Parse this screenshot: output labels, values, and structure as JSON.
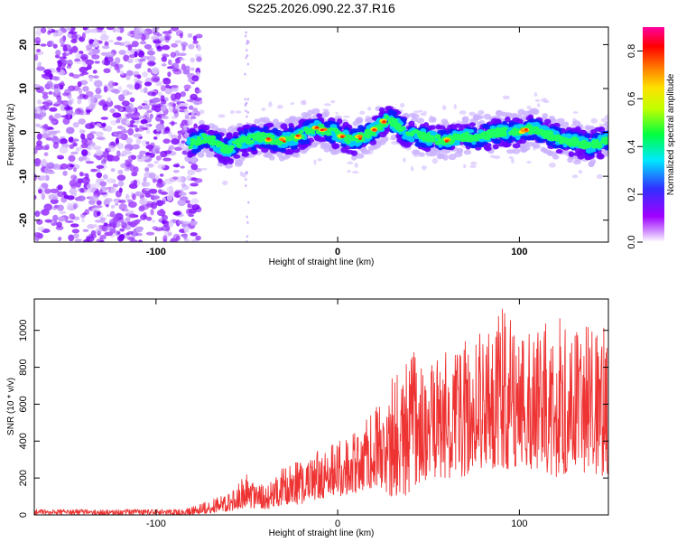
{
  "figure_title": "S225.2026.090.22.37.R16",
  "chart_data": [
    {
      "type": "heatmap",
      "xlabel": "Height of straight line (km)",
      "ylabel": "Frequency (Hz)",
      "xlim": [
        -167,
        149
      ],
      "ylim": [
        -25,
        24
      ],
      "xticks": [
        -100,
        0,
        100
      ],
      "xtick_labels": [
        "-100",
        "0",
        "100"
      ],
      "yticks": [
        20,
        10,
        0,
        -10,
        -20
      ],
      "ytick_labels": [
        "20",
        "10",
        "0",
        "-10",
        "-20"
      ],
      "signal_track": {
        "x": [
          -82,
          -72,
          -62,
          -52,
          -42,
          -32,
          -22,
          -12,
          -2,
          8,
          18,
          28,
          38,
          48,
          58,
          68,
          78,
          88,
          98,
          108,
          118,
          128,
          138,
          148
        ],
        "y": [
          -3,
          -1,
          -4,
          -2,
          -1,
          -2,
          -1,
          1,
          0,
          -2,
          0,
          3,
          0,
          -1,
          -2,
          -1,
          -1,
          0,
          0,
          1,
          -1,
          -2,
          -3,
          -2
        ]
      },
      "colorbar": {
        "label": "Normalized spectral amplitude",
        "min": 0.0,
        "max": 0.9,
        "ticks": [
          0.0,
          0.2,
          0.4,
          0.6,
          0.8
        ],
        "tick_labels": [
          "0.0",
          "0.2",
          "0.4",
          "0.6",
          "0.8"
        ],
        "colors": [
          "#ffffff",
          "#a000ff",
          "#3040ff",
          "#00ffff",
          "#00ff40",
          "#c0ff00",
          "#ffff00",
          "#ff8000",
          "#ff0000",
          "#ff00a0"
        ]
      }
    },
    {
      "type": "line",
      "xlabel": "Height of straight line (km)",
      "ylabel": "SNR (10 * v/v)",
      "xlim": [
        -167,
        149
      ],
      "ylim": [
        0,
        1170
      ],
      "xticks": [
        -100,
        0,
        100
      ],
      "xtick_labels": [
        "-100",
        "0",
        "100"
      ],
      "yticks": [
        0,
        200,
        400,
        600,
        800,
        1000
      ],
      "ytick_labels": [
        "0",
        "200",
        "400",
        "600",
        "800",
        "1000"
      ],
      "line_color": "#ee3333",
      "envelope": {
        "x": [
          -167,
          -120,
          -85,
          -75,
          -60,
          -50,
          -40,
          -30,
          -20,
          -10,
          0,
          10,
          20,
          30,
          40,
          50,
          60,
          70,
          80,
          90,
          100,
          110,
          120,
          130,
          140,
          149
        ],
        "lower": [
          0,
          0,
          0,
          5,
          20,
          40,
          30,
          50,
          60,
          80,
          100,
          120,
          150,
          100,
          100,
          200,
          200,
          200,
          250,
          250,
          250,
          250,
          200,
          250,
          200,
          200
        ],
        "upper": [
          30,
          30,
          30,
          60,
          120,
          240,
          150,
          260,
          300,
          360,
          400,
          450,
          580,
          750,
          900,
          800,
          900,
          950,
          1000,
          1150,
          1050,
          1000,
          1100,
          1000,
          1050,
          1000
        ]
      }
    }
  ]
}
